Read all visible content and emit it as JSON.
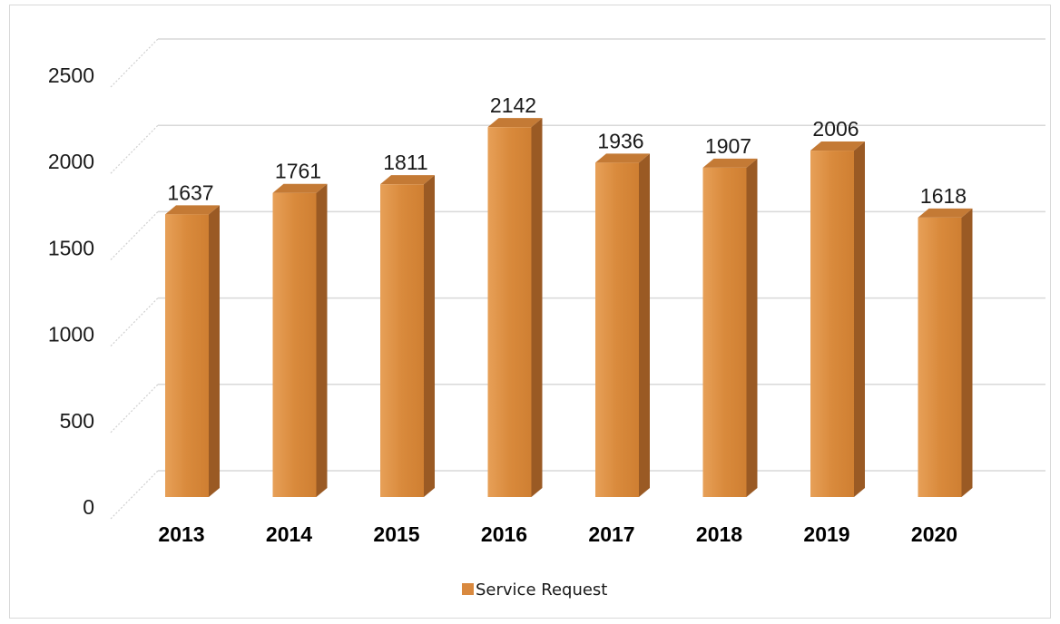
{
  "chart_data": {
    "type": "bar",
    "categories": [
      "2013",
      "2014",
      "2015",
      "2016",
      "2017",
      "2018",
      "2019",
      "2020"
    ],
    "series": [
      {
        "name": "Service Request",
        "values": [
          1637,
          1761,
          1811,
          2142,
          1936,
          1907,
          2006,
          1618
        ]
      }
    ],
    "ylim": [
      0,
      2500
    ],
    "yticks": [
      0,
      500,
      1000,
      1500,
      2000,
      2500
    ],
    "grid": true,
    "legend_position": "bottom",
    "style": "3d-column",
    "colors": {
      "front": "#d9893f",
      "side": "#9a5a24",
      "top": "#c47a35",
      "grid": "#d9d9d9"
    }
  }
}
